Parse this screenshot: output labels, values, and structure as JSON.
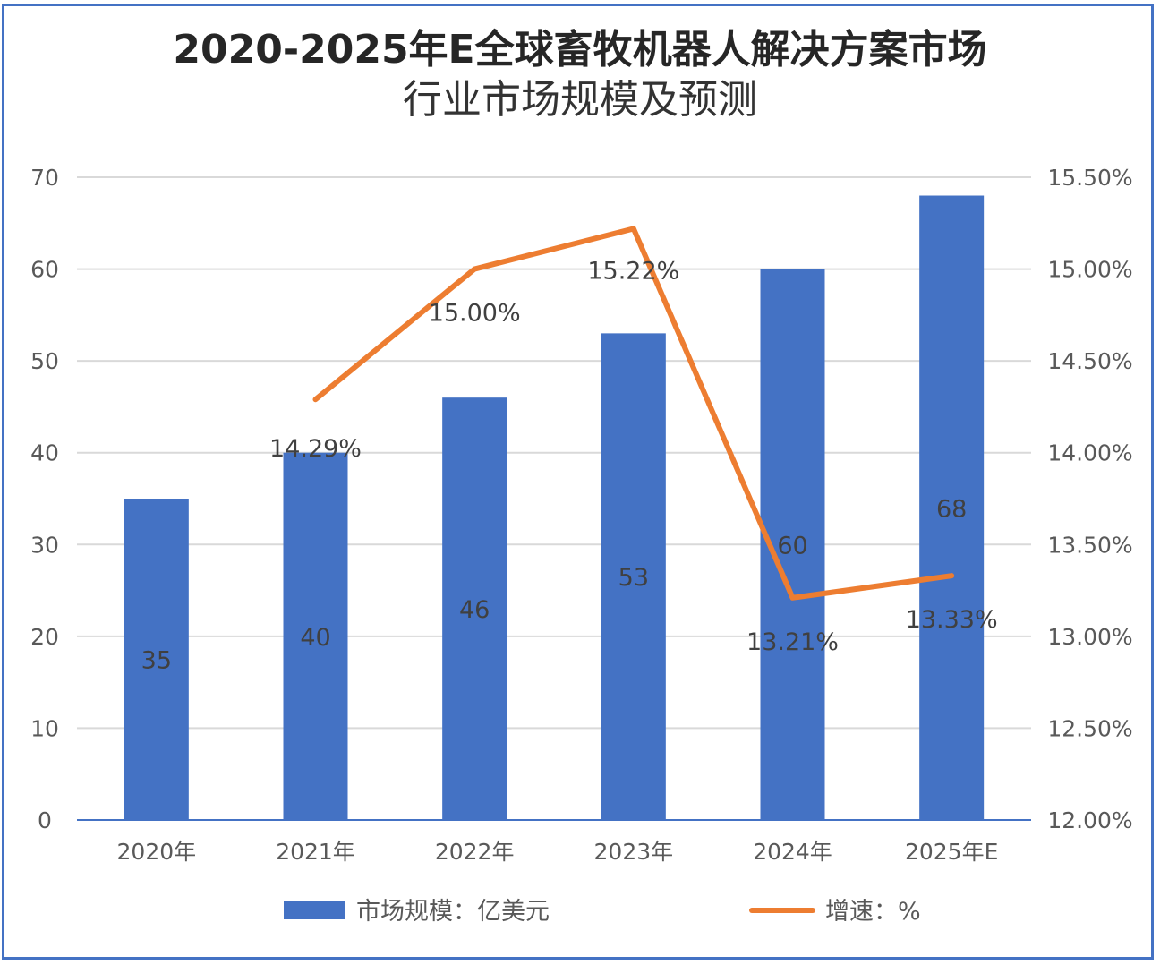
{
  "chart_data": {
    "type": "bar",
    "title_line1": "2020-2025年E全球畜牧机器人解决方案市场",
    "title_line2": "行业市场规模及预测",
    "categories": [
      "2020年",
      "2021年",
      "2022年",
      "2023年",
      "2024年",
      "2025年E"
    ],
    "series": [
      {
        "name": "市场规模：亿美元",
        "type": "bar",
        "axis": "left",
        "color": "#4472C4",
        "values": [
          35,
          40,
          46,
          53,
          60,
          68
        ],
        "labels": [
          "35",
          "40",
          "46",
          "53",
          "60",
          "68"
        ]
      },
      {
        "name": "增速：%",
        "type": "line",
        "axis": "right",
        "color": "#ED7D31",
        "values": [
          null,
          14.29,
          15.0,
          15.22,
          13.21,
          13.33
        ],
        "labels": [
          "",
          "14.29%",
          "15.00%",
          "15.22%",
          "13.21%",
          "13.33%"
        ]
      }
    ],
    "y_left": {
      "min": 0,
      "max": 70,
      "ticks": [
        "0",
        "10",
        "20",
        "30",
        "40",
        "50",
        "60",
        "70"
      ]
    },
    "y_right": {
      "min": 12.0,
      "max": 15.5,
      "ticks": [
        "12.00%",
        "12.50%",
        "13.00%",
        "13.50%",
        "14.00%",
        "14.50%",
        "15.00%",
        "15.50%"
      ]
    },
    "grid": true,
    "legend_position": "bottom"
  }
}
